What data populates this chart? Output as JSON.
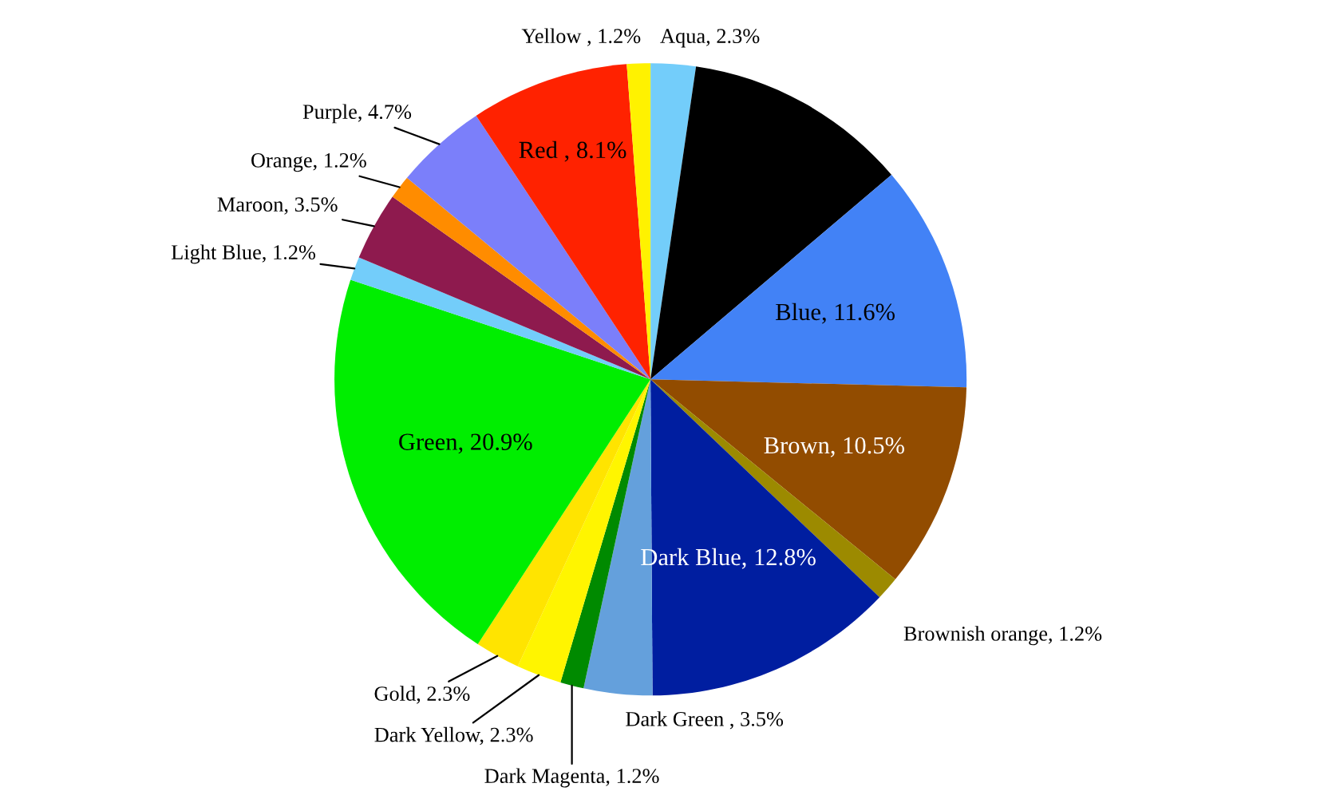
{
  "chart_data": {
    "type": "pie",
    "categories": [
      "Aqua",
      null,
      "Blue",
      "Brown",
      "Brownish orange",
      "Dark Blue",
      "Dark Green ",
      "Dark Magenta",
      "Dark Yellow",
      "Gold",
      "Green",
      "Light Blue",
      "Maroon",
      "Orange",
      "Purple",
      "Red ",
      "Yellow "
    ],
    "values": [
      2.3,
      11.5,
      11.6,
      10.5,
      1.2,
      12.8,
      3.5,
      1.2,
      2.3,
      2.3,
      20.9,
      1.2,
      3.5,
      1.2,
      4.7,
      8.1,
      1.2
    ],
    "value_labels": [
      "2.3%",
      null,
      "11.6%",
      "10.5%",
      "1.2%",
      "12.8%",
      "3.5%",
      "1.2%",
      "2.3%",
      "2.3%",
      "20.9%",
      "1.2%",
      "3.5%",
      "1.2%",
      "4.7%",
      "8.1%",
      "1.2%"
    ],
    "colors": [
      "#73cdfa",
      "#000000",
      "#4282f6",
      "#924c00",
      "#9c8a00",
      "#001ea0",
      "#64a0dc",
      "#008a00",
      "#fff500",
      "#ffe400",
      "#00ee00",
      "#73cdfa",
      "#8e1a4e",
      "#ff8c00",
      "#7b7ffa",
      "#ff2200",
      "#fff200"
    ]
  }
}
